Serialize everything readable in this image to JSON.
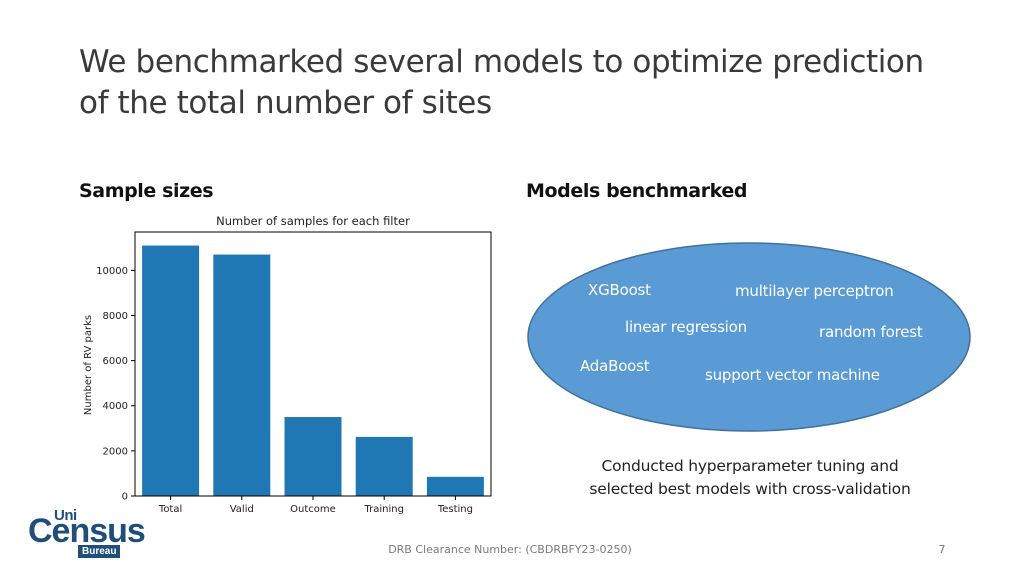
{
  "slide": {
    "title_lines": [
      "We benchmarked several models to optimize prediction",
      "of the total number of sites"
    ],
    "left_heading": "Sample sizes",
    "right_heading": "Models benchmarked"
  },
  "chart_data": {
    "type": "bar",
    "title": "Number of samples for each filter",
    "xlabel": "",
    "ylabel": "Number of RV parks",
    "categories": [
      "Total",
      "Valid",
      "Outcome",
      "Training",
      "Testing"
    ],
    "values": [
      11100,
      10700,
      3500,
      2620,
      850
    ],
    "ylim": [
      0,
      11700
    ],
    "yticks": [
      0,
      2000,
      4000,
      6000,
      8000,
      10000
    ],
    "bar_color": "#1f77b4",
    "grid": false,
    "legend": "none"
  },
  "models": {
    "xgboost": "XGBoost",
    "mlp": "multilayer perceptron",
    "linear": "linear regression",
    "rf": "random forest",
    "adaboost": "AdaBoost",
    "svm": "support vector machine"
  },
  "ellipse_color": "#5b9bd5",
  "note_lines": [
    "Conducted hyperparameter tuning and",
    "selected best models with cross-validation"
  ],
  "logo": {
    "top": "Uni",
    "main": "Census",
    "bottom": "Bureau"
  },
  "footer": {
    "clearance": "DRB Clearance Number: (CBDRBFY23-0250)",
    "page_number": "7"
  }
}
